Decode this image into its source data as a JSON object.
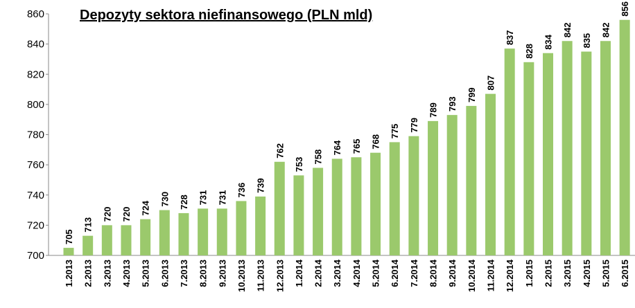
{
  "chart_data": {
    "type": "bar",
    "title": "Depozyty sektora niefinansowego (PLN mld)",
    "categories": [
      "1.2013",
      "2.2013",
      "3.2013",
      "4.2013",
      "5.2013",
      "6.2013",
      "7.2013",
      "8.2013",
      "9.2013",
      "10.2013",
      "11.2013",
      "12.2013",
      "1.2014",
      "2.2014",
      "3.2014",
      "4.2014",
      "5.2014",
      "6.2014",
      "7.2014",
      "8.2014",
      "9.2014",
      "10.2014",
      "11.2014",
      "12.2014",
      "1.2015",
      "2.2015",
      "3.2015",
      "4.2015",
      "5.2015",
      "6.2015"
    ],
    "values": [
      705,
      713,
      720,
      720,
      724,
      730,
      728,
      731,
      731,
      736,
      739,
      762,
      753,
      758,
      764,
      765,
      768,
      775,
      779,
      789,
      793,
      799,
      807,
      837,
      828,
      834,
      842,
      835,
      842,
      856
    ],
    "color": "#9bc96c",
    "ylim": [
      700,
      860
    ],
    "yticks": [
      700,
      720,
      740,
      760,
      780,
      800,
      820,
      840,
      860
    ],
    "grid": false
  }
}
